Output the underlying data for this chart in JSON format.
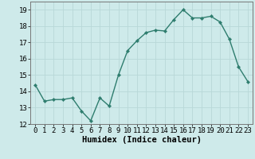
{
  "x": [
    0,
    1,
    2,
    3,
    4,
    5,
    6,
    7,
    8,
    9,
    10,
    11,
    12,
    13,
    14,
    15,
    16,
    17,
    18,
    19,
    20,
    21,
    22,
    23
  ],
  "y": [
    14.4,
    13.4,
    13.5,
    13.5,
    13.6,
    12.8,
    12.2,
    13.6,
    13.1,
    15.0,
    16.5,
    17.1,
    17.6,
    17.75,
    17.7,
    18.4,
    19.0,
    18.5,
    18.5,
    18.6,
    18.25,
    17.2,
    15.5,
    14.6
  ],
  "xlabel": "Humidex (Indice chaleur)",
  "ylim": [
    12,
    19.5
  ],
  "xlim": [
    -0.5,
    23.5
  ],
  "yticks": [
    12,
    13,
    14,
    15,
    16,
    17,
    18,
    19
  ],
  "xticks": [
    0,
    1,
    2,
    3,
    4,
    5,
    6,
    7,
    8,
    9,
    10,
    11,
    12,
    13,
    14,
    15,
    16,
    17,
    18,
    19,
    20,
    21,
    22,
    23
  ],
  "line_color": "#2e7d6e",
  "marker": "D",
  "marker_size": 2.2,
  "bg_color": "#ceeaea",
  "grid_color": "#b8d8d8",
  "xlabel_fontsize": 7.5,
  "tick_fontsize": 6.5,
  "linewidth": 1.0
}
